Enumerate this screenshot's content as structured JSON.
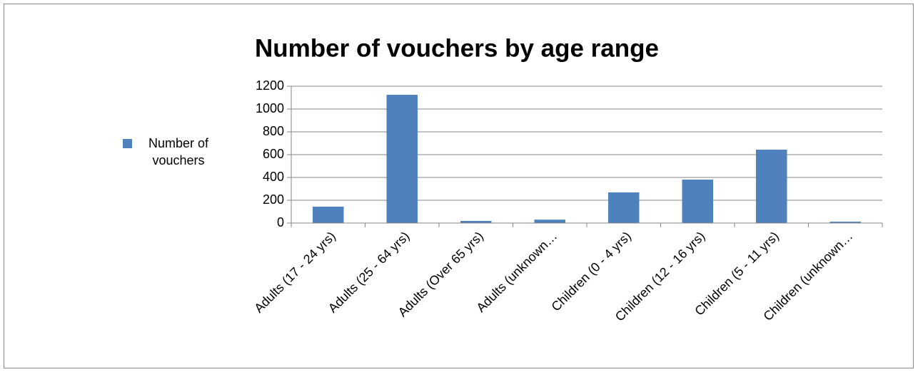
{
  "chart_data": {
    "type": "bar",
    "title": "Number of vouchers by age range",
    "categories": [
      "Adults (17 - 24 yrs)",
      "Adults (25 - 64 yrs)",
      "Adults (Over 65 yrs)",
      "Adults (unknown…",
      "Children (0 - 4 yrs)",
      "Children (12 - 16 yrs)",
      "Children (5 - 11 yrs)",
      "Children (unknown…"
    ],
    "series": [
      {
        "name": "Number of vouchers",
        "color": "#4f81bd",
        "values": [
          144,
          1125,
          19,
          30,
          269,
          381,
          644,
          12
        ]
      }
    ],
    "ylim": [
      0,
      1200
    ],
    "yticks": [
      0,
      200,
      400,
      600,
      800,
      1000,
      1200
    ],
    "grid": true,
    "legend": "left"
  }
}
